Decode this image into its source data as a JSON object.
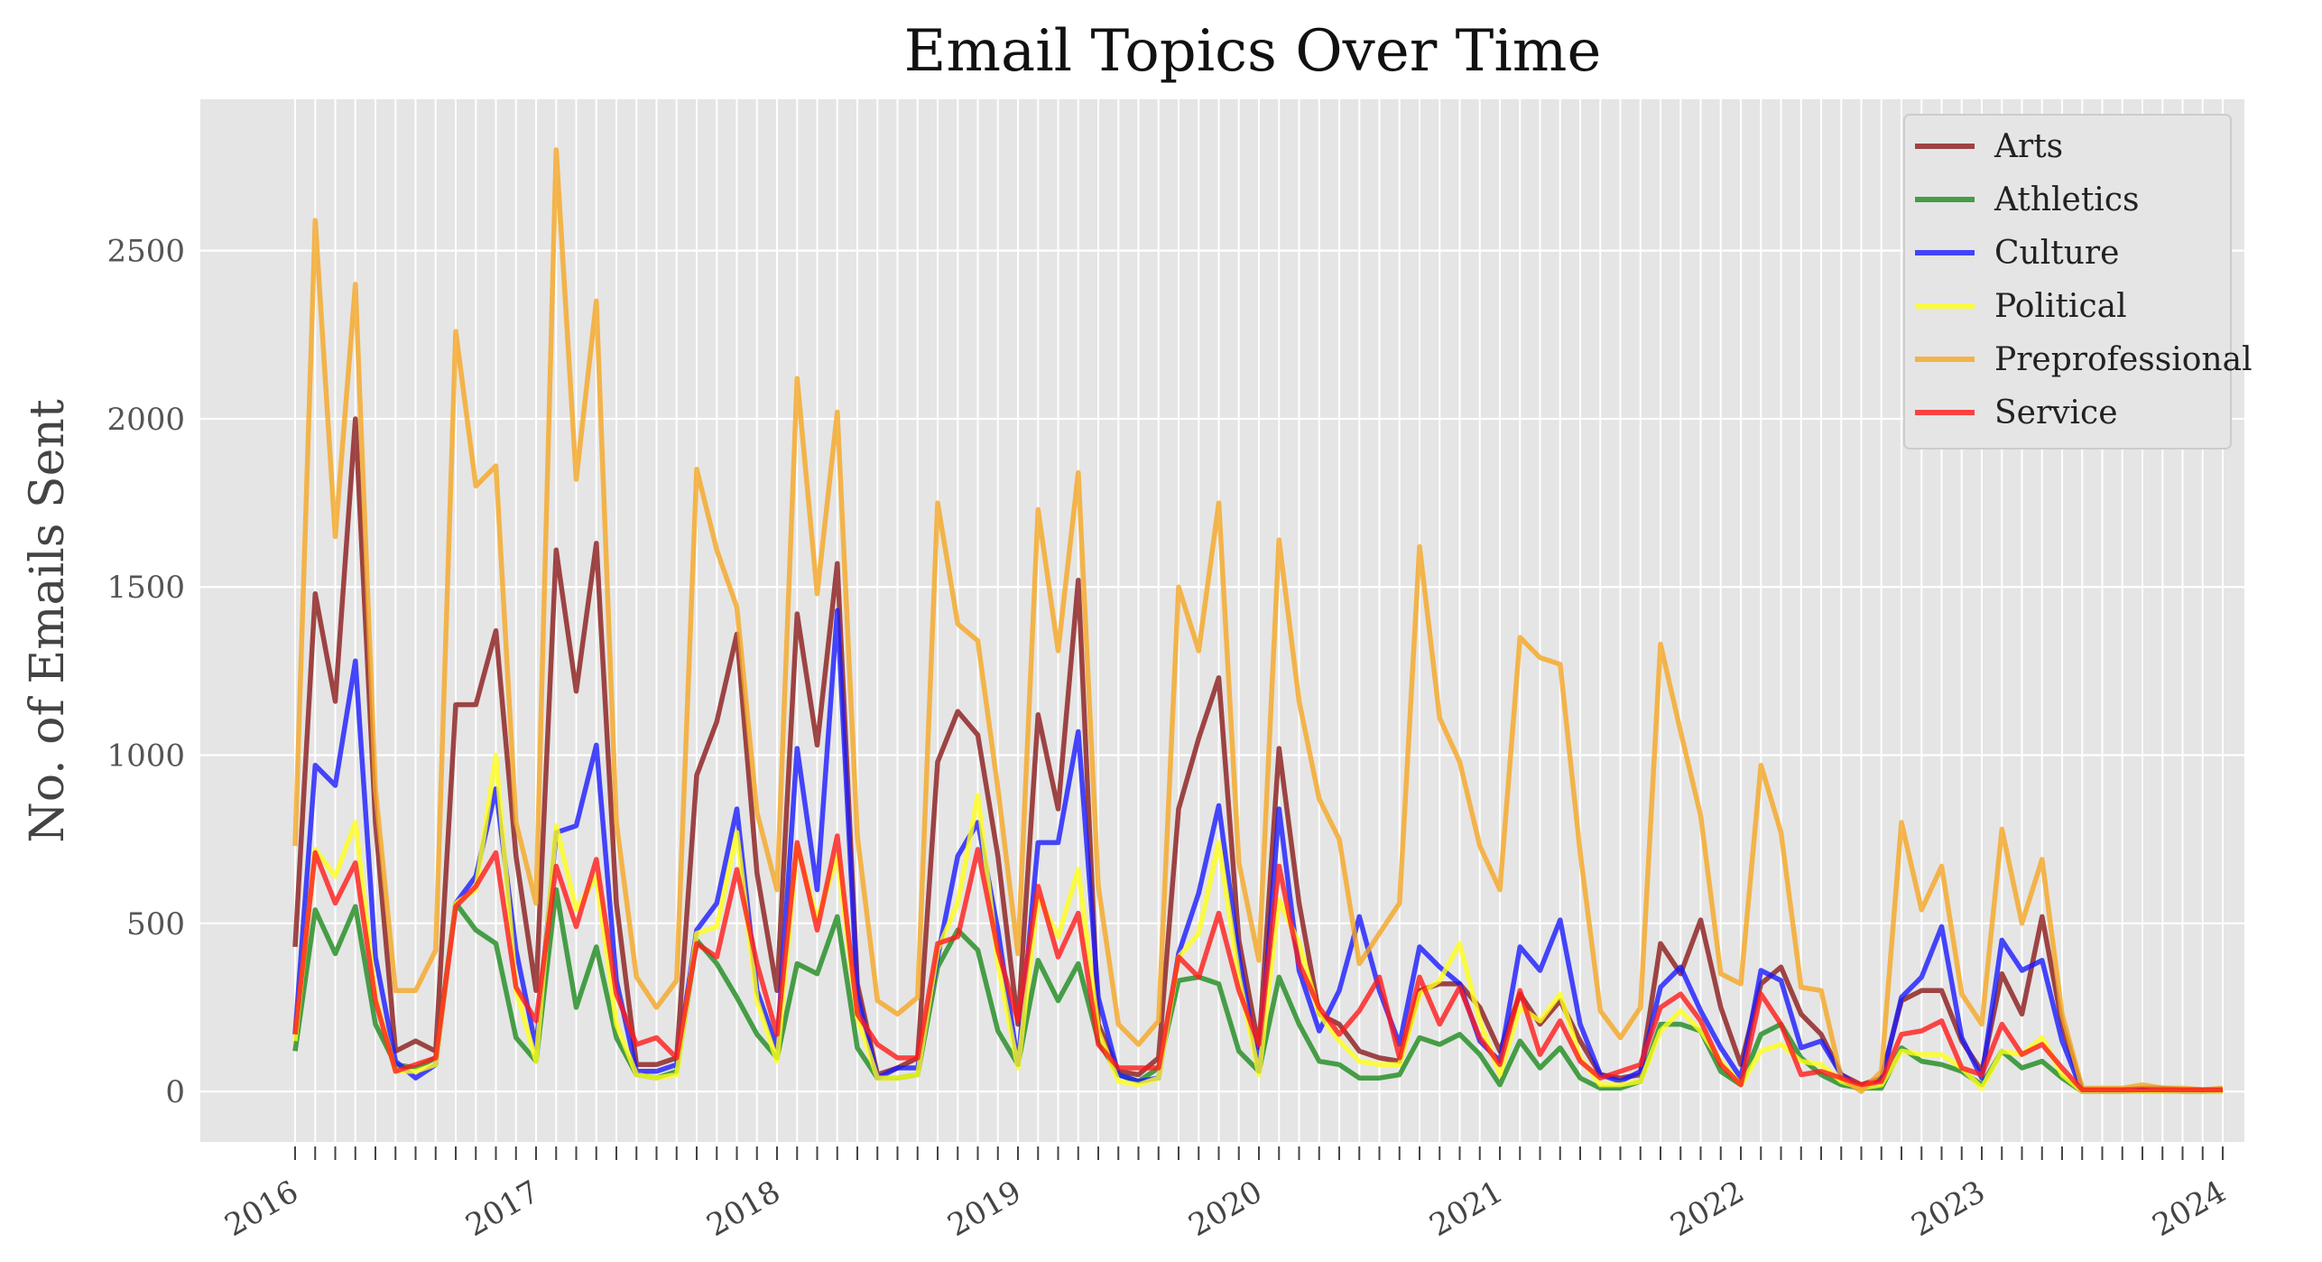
{
  "chart_data": {
    "type": "line",
    "title": "Email Topics Over Time",
    "xlabel": "",
    "ylabel": "No. of Emails Sent",
    "ylim": [
      -150,
      2950
    ],
    "yticks": [
      0,
      500,
      1000,
      1500,
      2000,
      2500
    ],
    "year_ticks": [
      "2016",
      "2017",
      "2018",
      "2019",
      "2020",
      "2021",
      "2022",
      "2023",
      "2024"
    ],
    "month_count": 97,
    "grid": true,
    "legend_position": "top-right",
    "series": [
      {
        "name": "Arts",
        "color": "#8b1a1a",
        "values": [
          430,
          1480,
          1160,
          2000,
          800,
          120,
          150,
          120,
          1150,
          1150,
          1370,
          700,
          300,
          1610,
          1190,
          1630,
          560,
          80,
          80,
          100,
          940,
          1100,
          1360,
          650,
          300,
          1420,
          1030,
          1570,
          320,
          50,
          70,
          100,
          980,
          1130,
          1060,
          700,
          200,
          1120,
          840,
          1520,
          200,
          60,
          50,
          100,
          840,
          1050,
          1230,
          450,
          130,
          1020,
          560,
          230,
          200,
          120,
          100,
          90,
          300,
          320,
          320,
          250,
          120,
          290,
          200,
          270,
          150,
          50,
          40,
          50,
          440,
          350,
          510,
          250,
          80,
          320,
          370,
          230,
          170,
          50,
          20,
          40,
          270,
          300,
          300,
          150,
          60,
          350,
          230,
          520,
          200,
          5,
          5,
          5,
          10,
          10,
          5,
          5,
          5
        ]
      },
      {
        "name": "Athletics",
        "color": "#1e8b1e",
        "values": [
          120,
          540,
          410,
          550,
          200,
          80,
          70,
          100,
          560,
          480,
          440,
          160,
          90,
          600,
          250,
          430,
          160,
          50,
          40,
          60,
          450,
          380,
          280,
          170,
          100,
          380,
          350,
          520,
          130,
          40,
          40,
          50,
          370,
          480,
          420,
          180,
          80,
          390,
          270,
          380,
          150,
          50,
          30,
          70,
          330,
          340,
          320,
          120,
          60,
          340,
          200,
          90,
          80,
          40,
          40,
          50,
          160,
          140,
          170,
          110,
          20,
          150,
          70,
          130,
          40,
          10,
          10,
          30,
          200,
          200,
          180,
          60,
          20,
          170,
          200,
          100,
          50,
          20,
          10,
          10,
          130,
          90,
          80,
          60,
          20,
          120,
          70,
          90,
          40,
          0,
          0,
          0,
          0,
          0,
          0,
          0,
          0
        ]
      },
      {
        "name": "Culture",
        "color": "#1a1aff",
        "values": [
          170,
          970,
          910,
          1280,
          400,
          90,
          40,
          80,
          560,
          640,
          900,
          420,
          130,
          770,
          790,
          1030,
          330,
          60,
          60,
          80,
          480,
          560,
          840,
          300,
          130,
          1020,
          600,
          1430,
          290,
          40,
          70,
          70,
          400,
          700,
          800,
          480,
          80,
          740,
          740,
          1070,
          280,
          50,
          30,
          40,
          410,
          590,
          850,
          400,
          60,
          840,
          360,
          180,
          300,
          520,
          300,
          140,
          430,
          370,
          320,
          150,
          90,
          430,
          360,
          510,
          200,
          50,
          30,
          60,
          310,
          370,
          240,
          130,
          40,
          360,
          330,
          130,
          150,
          50,
          10,
          30,
          280,
          340,
          490,
          160,
          40,
          450,
          360,
          390,
          150,
          0,
          0,
          0,
          5,
          5,
          0,
          0,
          5
        ]
      },
      {
        "name": "Political",
        "color": "#ffff1a",
        "values": [
          150,
          720,
          640,
          800,
          280,
          60,
          60,
          80,
          560,
          600,
          1000,
          300,
          90,
          790,
          540,
          640,
          200,
          50,
          40,
          50,
          470,
          490,
          770,
          270,
          90,
          730,
          510,
          700,
          220,
          40,
          40,
          50,
          420,
          560,
          880,
          380,
          70,
          580,
          460,
          660,
          180,
          30,
          20,
          40,
          400,
          470,
          740,
          340,
          50,
          570,
          440,
          230,
          150,
          90,
          80,
          80,
          290,
          330,
          440,
          210,
          50,
          250,
          210,
          290,
          100,
          20,
          20,
          30,
          180,
          240,
          180,
          90,
          20,
          120,
          140,
          90,
          80,
          30,
          10,
          20,
          120,
          110,
          110,
          70,
          10,
          120,
          110,
          160,
          50,
          0,
          0,
          0,
          0,
          0,
          0,
          0,
          0
        ]
      },
      {
        "name": "Preprofessional",
        "color": "#f5a623",
        "values": [
          730,
          2590,
          1650,
          2400,
          900,
          300,
          300,
          420,
          2260,
          1800,
          1860,
          800,
          560,
          2800,
          1820,
          2350,
          800,
          340,
          250,
          330,
          1850,
          1610,
          1440,
          830,
          600,
          2120,
          1480,
          2020,
          760,
          270,
          230,
          280,
          1750,
          1390,
          1340,
          900,
          410,
          1730,
          1310,
          1840,
          610,
          200,
          140,
          210,
          1500,
          1310,
          1750,
          680,
          390,
          1640,
          1160,
          870,
          750,
          380,
          470,
          560,
          1620,
          1110,
          980,
          730,
          600,
          1350,
          1290,
          1270,
          710,
          240,
          160,
          250,
          1330,
          1070,
          820,
          350,
          320,
          970,
          770,
          310,
          300,
          40,
          0,
          60,
          800,
          540,
          670,
          290,
          200,
          780,
          500,
          690,
          230,
          10,
          10,
          10,
          20,
          10,
          10,
          5,
          10
        ]
      },
      {
        "name": "Service",
        "color": "#ff1a1a",
        "values": [
          170,
          710,
          560,
          680,
          270,
          60,
          80,
          100,
          550,
          610,
          710,
          310,
          210,
          670,
          490,
          690,
          290,
          140,
          160,
          100,
          440,
          400,
          660,
          380,
          170,
          740,
          480,
          760,
          230,
          140,
          100,
          100,
          440,
          460,
          720,
          420,
          210,
          610,
          400,
          530,
          140,
          70,
          70,
          70,
          400,
          340,
          530,
          300,
          140,
          670,
          380,
          250,
          170,
          240,
          340,
          100,
          340,
          200,
          310,
          160,
          80,
          300,
          110,
          210,
          90,
          40,
          60,
          80,
          250,
          290,
          210,
          80,
          20,
          290,
          200,
          50,
          60,
          40,
          20,
          30,
          170,
          180,
          210,
          70,
          50,
          200,
          110,
          140,
          70,
          5,
          5,
          5,
          5,
          5,
          5,
          5,
          5
        ]
      }
    ]
  }
}
